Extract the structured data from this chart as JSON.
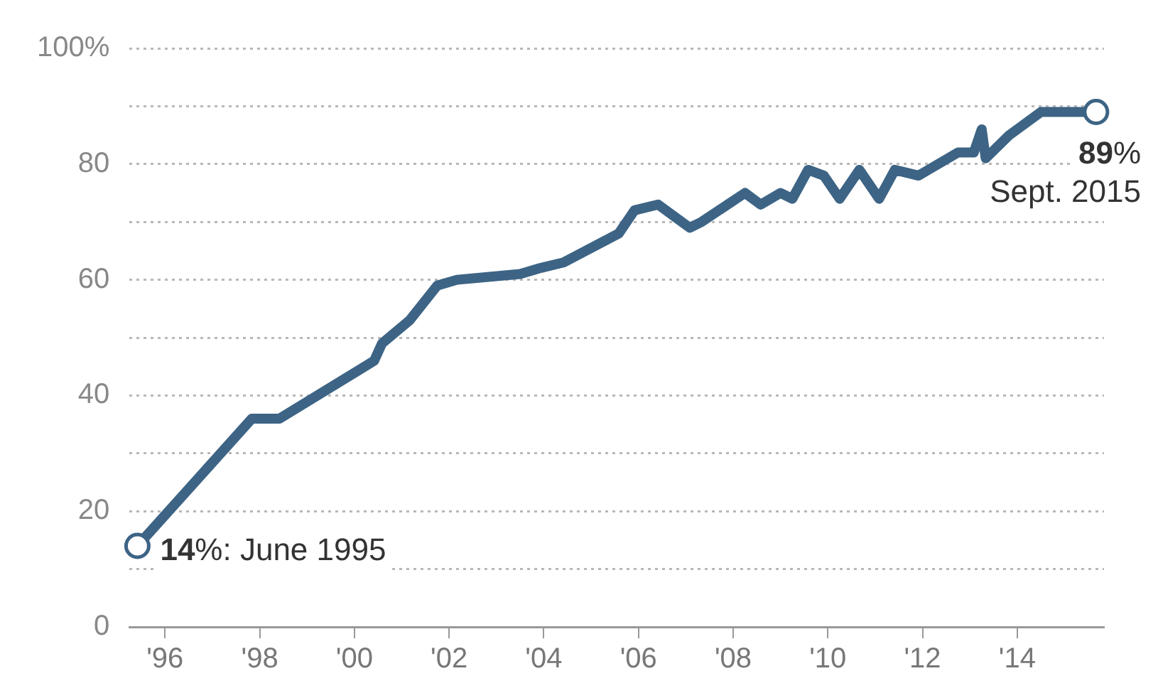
{
  "chart_data": {
    "type": "line",
    "x": [
      "1995-06",
      "1997-11",
      "1998-06",
      "2000-06",
      "2000-08",
      "2001-03",
      "2001-10",
      "2002-03",
      "2003-07",
      "2003-12",
      "2004-06",
      "2005-08",
      "2005-12",
      "2006-06",
      "2007-02",
      "2007-05",
      "2008-04",
      "2008-08",
      "2009-01",
      "2009-04",
      "2009-08",
      "2009-12",
      "2010-04",
      "2010-09",
      "2011-02",
      "2011-06",
      "2011-12",
      "2012-10",
      "2013-02",
      "2013-04",
      "2013-05",
      "2013-11",
      "2014-03",
      "2014-07",
      "2015-05",
      "2015-09"
    ],
    "series": [
      {
        "color": "#3d6485",
        "values": [
          14,
          36,
          36,
          46,
          49,
          53,
          59,
          60,
          61,
          62,
          63,
          68,
          72,
          73,
          69,
          70,
          75,
          73,
          75,
          74,
          79,
          78,
          74,
          79,
          74,
          79,
          78,
          82,
          82,
          86,
          81,
          85,
          87,
          89,
          89,
          89
        ]
      }
    ],
    "xlim": [
      "1995-04",
      "2015-11"
    ],
    "xticks": [
      {
        "value": "1996",
        "label": "'96"
      },
      {
        "value": "1998",
        "label": "'98"
      },
      {
        "value": "2000",
        "label": "'00"
      },
      {
        "value": "2002",
        "label": "'02"
      },
      {
        "value": "2004",
        "label": "'04"
      },
      {
        "value": "2006",
        "label": "'06"
      },
      {
        "value": "2008",
        "label": "'08"
      },
      {
        "value": "2010",
        "label": "'10"
      },
      {
        "value": "2012",
        "label": "'12"
      },
      {
        "value": "2014",
        "label": "'14"
      }
    ],
    "ylim": [
      0,
      100
    ],
    "yticks": [
      0,
      {
        "value": 10,
        "label": null
      },
      20,
      {
        "value": 30,
        "label": null
      },
      40,
      {
        "value": 50,
        "label": null
      },
      60,
      {
        "value": 70,
        "label": null
      },
      80,
      {
        "value": 90,
        "label": null
      },
      {
        "value": 100,
        "label": "100%"
      }
    ],
    "grid": "y",
    "legend": false,
    "marker": "none",
    "line_style": "solid",
    "annotations": [
      {
        "text": "14%: June 1995",
        "x": "1995-06",
        "y": 14
      },
      {
        "text": "89%\nSept. 2015",
        "x": "2015-09",
        "y": 89
      }
    ]
  }
}
